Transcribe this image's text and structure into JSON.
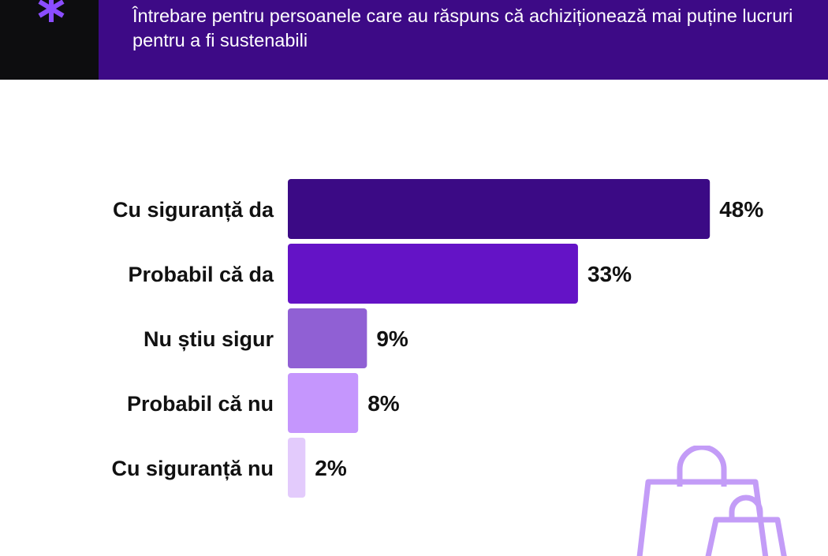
{
  "header": {
    "question": "Întrebare pentru persoanele care au răspuns că achiziționează mai puține lucruri pentru a fi sustenabili"
  },
  "decor": {
    "asterisk_icon": "asterisk-icon",
    "bags_icon": "shopping-bags-icon"
  },
  "colors": {
    "header_bg": "#3d0a86",
    "left_block": "#0d0d0f",
    "asterisk": "#8b4dff",
    "bags_outline": "#c39cf7"
  },
  "chart_data": {
    "type": "bar",
    "orientation": "horizontal",
    "categories": [
      "Cu siguranță da",
      "Probabil că da",
      "Nu știu sigur",
      "Probabil că nu",
      "Cu siguranță nu"
    ],
    "values": [
      48,
      33,
      9,
      8,
      2
    ],
    "value_labels": [
      "48%",
      "33%",
      "9%",
      "8%",
      "2%"
    ],
    "bar_colors": [
      "#3b0a85",
      "#6413c6",
      "#9060d4",
      "#c596fd",
      "#e3cbfc"
    ],
    "unit": "%",
    "xlim": [
      0,
      100
    ],
    "grid": false,
    "legend": "none"
  }
}
